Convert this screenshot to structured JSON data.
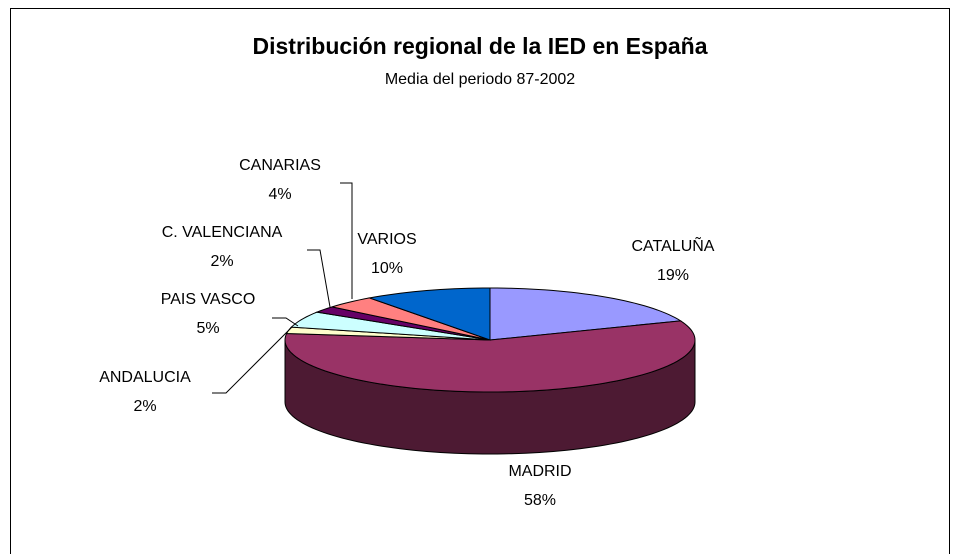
{
  "chart_data": {
    "type": "pie3d",
    "title": "Distribución regional de la IED en España",
    "subtitle": "Media del periodo 87-2002",
    "categories": [
      "CATALUÑA",
      "MADRID",
      "ANDALUCIA",
      "PAIS VASCO",
      "C. VALENCIANA",
      "CANARIAS",
      "VARIOS"
    ],
    "values": [
      19,
      58,
      2,
      5,
      2,
      4,
      10
    ],
    "value_labels": [
      "19%",
      "58%",
      "2%",
      "5%",
      "2%",
      "4%",
      "10%"
    ],
    "colors": [
      "#9999ff",
      "#993366",
      "#ffffcc",
      "#ccffff",
      "#660066",
      "#ff8080",
      "#0066cc"
    ]
  }
}
